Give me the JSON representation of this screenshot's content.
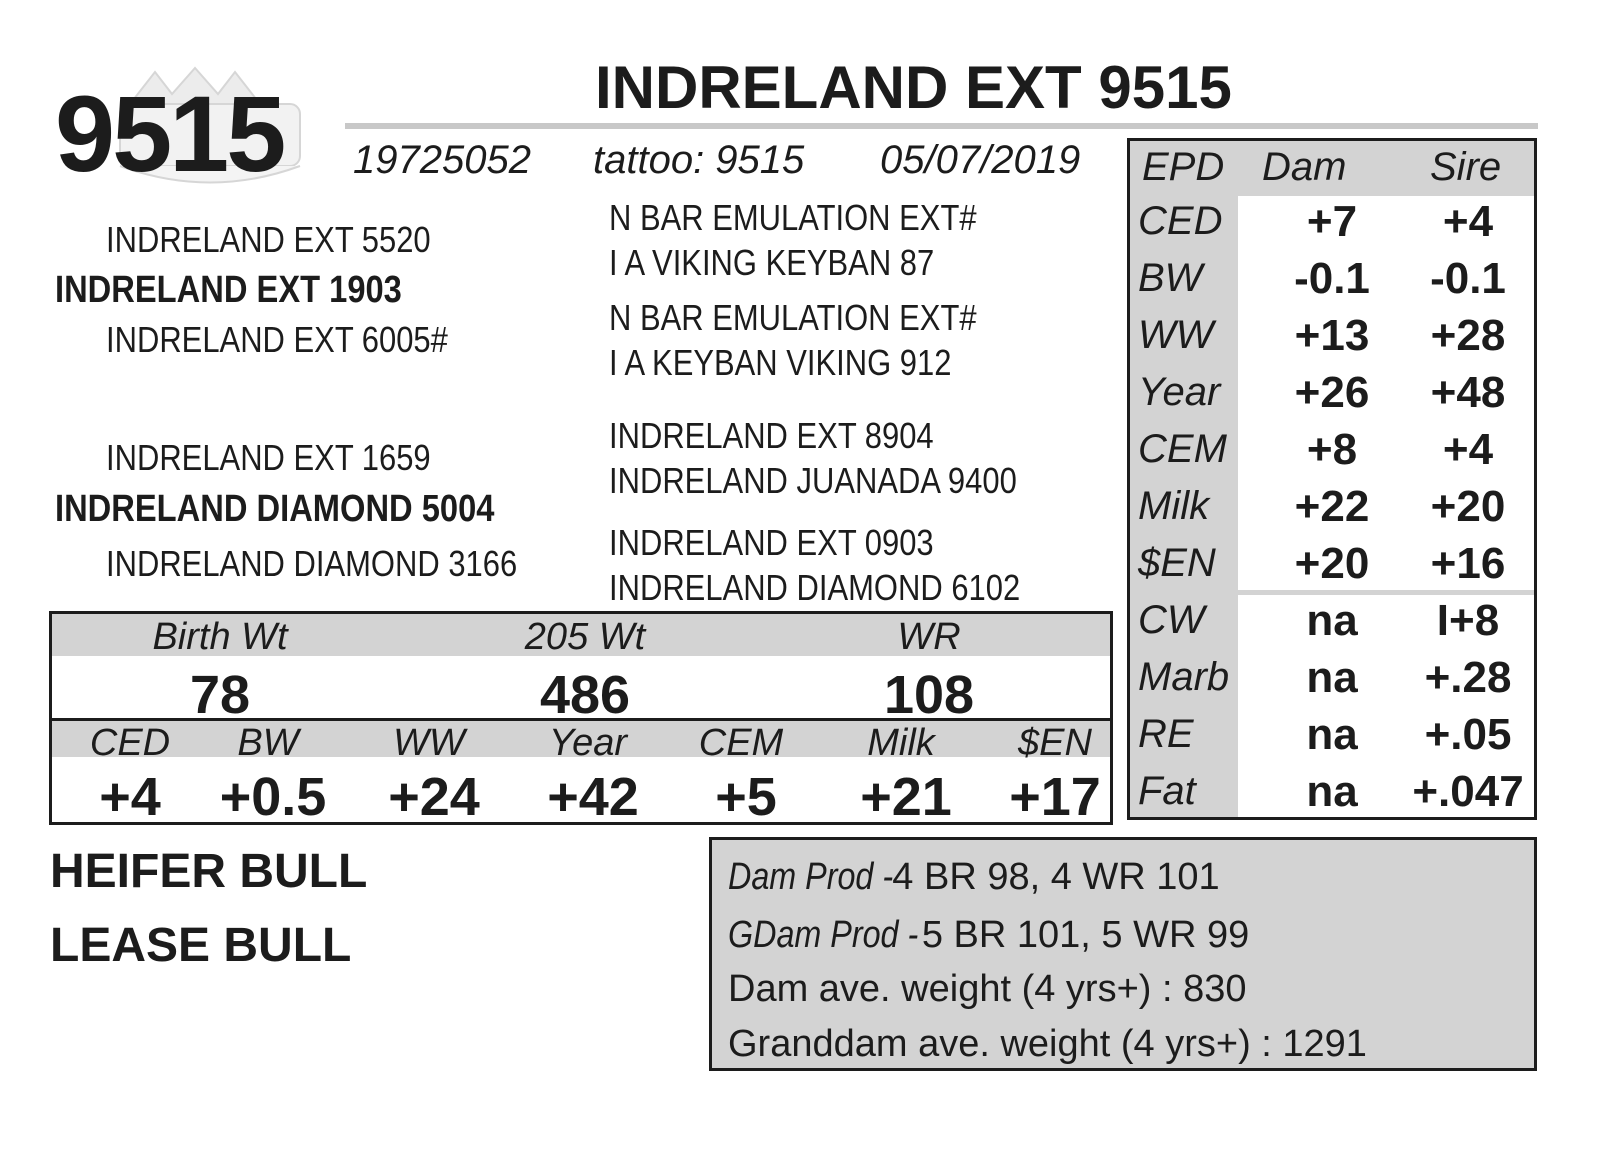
{
  "header": {
    "lot_number": "9515",
    "name": "INDRELAND EXT 9515",
    "registration": "19725052",
    "tattoo": "tattoo: 9515",
    "birth_date": "05/07/2019"
  },
  "pedigree": {
    "sire": "INDRELAND EXT 1903",
    "sire_sire": "INDRELAND EXT 5520",
    "sire_dam": "INDRELAND EXT 6005#",
    "sire_sire_sire": "N BAR EMULATION EXT#",
    "sire_sire_dam": "I A VIKING KEYBAN 87",
    "sire_dam_sire": "N BAR EMULATION EXT#",
    "sire_dam_dam": "I A KEYBAN VIKING 912",
    "dam": "INDRELAND DIAMOND 5004",
    "dam_sire": "INDRELAND EXT 1659",
    "dam_dam": "INDRELAND DIAMOND 3166",
    "dam_sire_sire": "INDRELAND EXT 8904",
    "dam_sire_dam": "INDRELAND JUANADA 9400",
    "dam_dam_sire": "INDRELAND EXT 0903",
    "dam_dam_dam": "INDRELAND DIAMOND 6102"
  },
  "epd_table": {
    "headers": [
      "EPD",
      "Dam",
      "Sire"
    ],
    "rows": [
      {
        "label": "CED",
        "dam": "+7",
        "sire": "+4"
      },
      {
        "label": "BW",
        "dam": "-0.1",
        "sire": "-0.1"
      },
      {
        "label": "WW",
        "dam": "+13",
        "sire": "+28"
      },
      {
        "label": "Year",
        "dam": "+26",
        "sire": "+48"
      },
      {
        "label": "CEM",
        "dam": "+8",
        "sire": "+4"
      },
      {
        "label": "Milk",
        "dam": "+22",
        "sire": "+20"
      },
      {
        "label": "$EN",
        "dam": "+20",
        "sire": "+16"
      },
      {
        "label": "CW",
        "dam": "na",
        "sire": "I+8"
      },
      {
        "label": "Marb",
        "dam": "na",
        "sire": "+.28"
      },
      {
        "label": "RE",
        "dam": "na",
        "sire": "+.05"
      },
      {
        "label": "Fat",
        "dam": "na",
        "sire": "+.047"
      }
    ]
  },
  "weights": {
    "labels": [
      "Birth Wt",
      "205 Wt",
      "WR"
    ],
    "values": [
      "78",
      "486",
      "108"
    ]
  },
  "bull_epds": {
    "labels": [
      "CED",
      "BW",
      "WW",
      "Year",
      "CEM",
      "Milk",
      "$EN"
    ],
    "values": [
      "+4",
      "+0.5",
      "+24",
      "+42",
      "+5",
      "+21",
      "+17"
    ]
  },
  "status": [
    "HEIFER BULL",
    "LEASE BULL"
  ],
  "production": {
    "dam_prod_label": "Dam Prod - ",
    "dam_prod": "4 BR 98, 4 WR 101",
    "gdam_prod_label": "GDam Prod - ",
    "gdam_prod": "5 BR 101, 5 WR 99",
    "dam_weight": "Dam ave. weight (4 yrs+) : 830",
    "granddam_weight": "Granddam ave. weight (4 yrs+) : 1291"
  },
  "colors": {
    "text": "#1c1c1c",
    "shade": "#d3d3d3",
    "rule": "#c8c8c8"
  },
  "logo": {
    "icon": "mountain-ranch-logo-watermark"
  }
}
